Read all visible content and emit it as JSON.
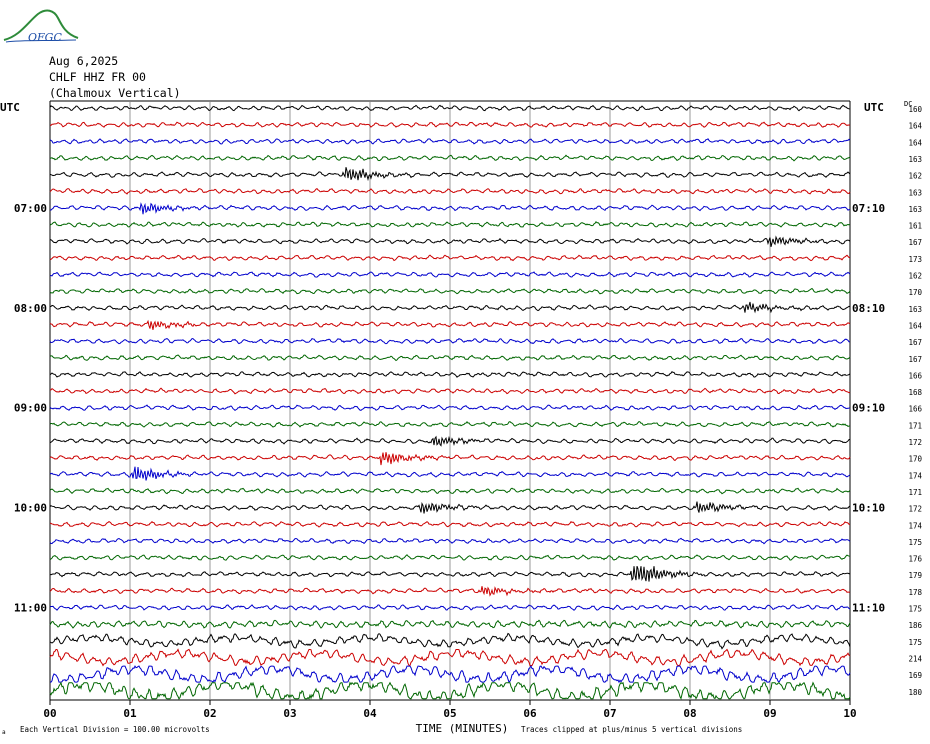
{
  "header": {
    "logo_text": "OFGC",
    "date": "Aug 6,2025",
    "station": "CHLF HHZ FR 00",
    "location": "(Chalmoux Vertical)"
  },
  "labels": {
    "left_tz": "UTC",
    "right_tz": "UTC",
    "dc_label": "DC",
    "x_title": "TIME (MINUTES)",
    "scale_note": "Each Vertical Division =  100.00 microvolts",
    "clip_note": "Traces clipped at plus/minus 5 vertical divisions",
    "corner_mark": "a"
  },
  "colors": {
    "trace_cycle": [
      "#000000",
      "#cc0000",
      "#0000cc",
      "#006600"
    ],
    "grid": "#808080"
  },
  "chart_data": {
    "type": "line",
    "title": "CHLF HHZ FR 00 (Chalmoux Vertical)",
    "xlabel": "TIME (MINUTES)",
    "ylabel": "UTC",
    "x_ticks": [
      "00",
      "01",
      "02",
      "03",
      "04",
      "05",
      "06",
      "07",
      "08",
      "09",
      "10"
    ],
    "xlim": [
      0,
      10
    ],
    "left_time_labels": [
      {
        "row": 6,
        "label": "07:00"
      },
      {
        "row": 12,
        "label": "08:00"
      },
      {
        "row": 18,
        "label": "09:00"
      },
      {
        "row": 24,
        "label": "10:00"
      },
      {
        "row": 30,
        "label": "11:00"
      }
    ],
    "right_time_labels": [
      {
        "row": 6,
        "label": "07:10"
      },
      {
        "row": 12,
        "label": "08:10"
      },
      {
        "row": 18,
        "label": "09:10"
      },
      {
        "row": 24,
        "label": "10:10"
      },
      {
        "row": 30,
        "label": "11:10"
      }
    ],
    "dc_offsets": [
      160,
      164,
      164,
      163,
      162,
      163,
      163,
      161,
      167,
      173,
      162,
      170,
      163,
      164,
      167,
      167,
      166,
      168,
      166,
      171,
      172,
      170,
      174,
      171,
      172,
      174,
      175,
      176,
      179,
      178,
      175,
      186,
      175,
      214,
      169,
      180
    ],
    "events": [
      {
        "row": 4,
        "minute": 3.7,
        "amp": 1.8
      },
      {
        "row": 6,
        "minute": 1.15,
        "amp": 1.4
      },
      {
        "row": 8,
        "minute": 9.0,
        "amp": 1.2
      },
      {
        "row": 12,
        "minute": 8.7,
        "amp": 1.3
      },
      {
        "row": 13,
        "minute": 1.25,
        "amp": 1.0
      },
      {
        "row": 20,
        "minute": 4.8,
        "amp": 1.2
      },
      {
        "row": 21,
        "minute": 4.15,
        "amp": 1.6
      },
      {
        "row": 22,
        "minute": 1.05,
        "amp": 1.8
      },
      {
        "row": 24,
        "minute": 4.65,
        "amp": 1.4
      },
      {
        "row": 24,
        "minute": 8.1,
        "amp": 1.4
      },
      {
        "row": 28,
        "minute": 7.3,
        "amp": 3.0
      },
      {
        "row": 29,
        "minute": 5.4,
        "amp": 1.1
      }
    ]
  }
}
